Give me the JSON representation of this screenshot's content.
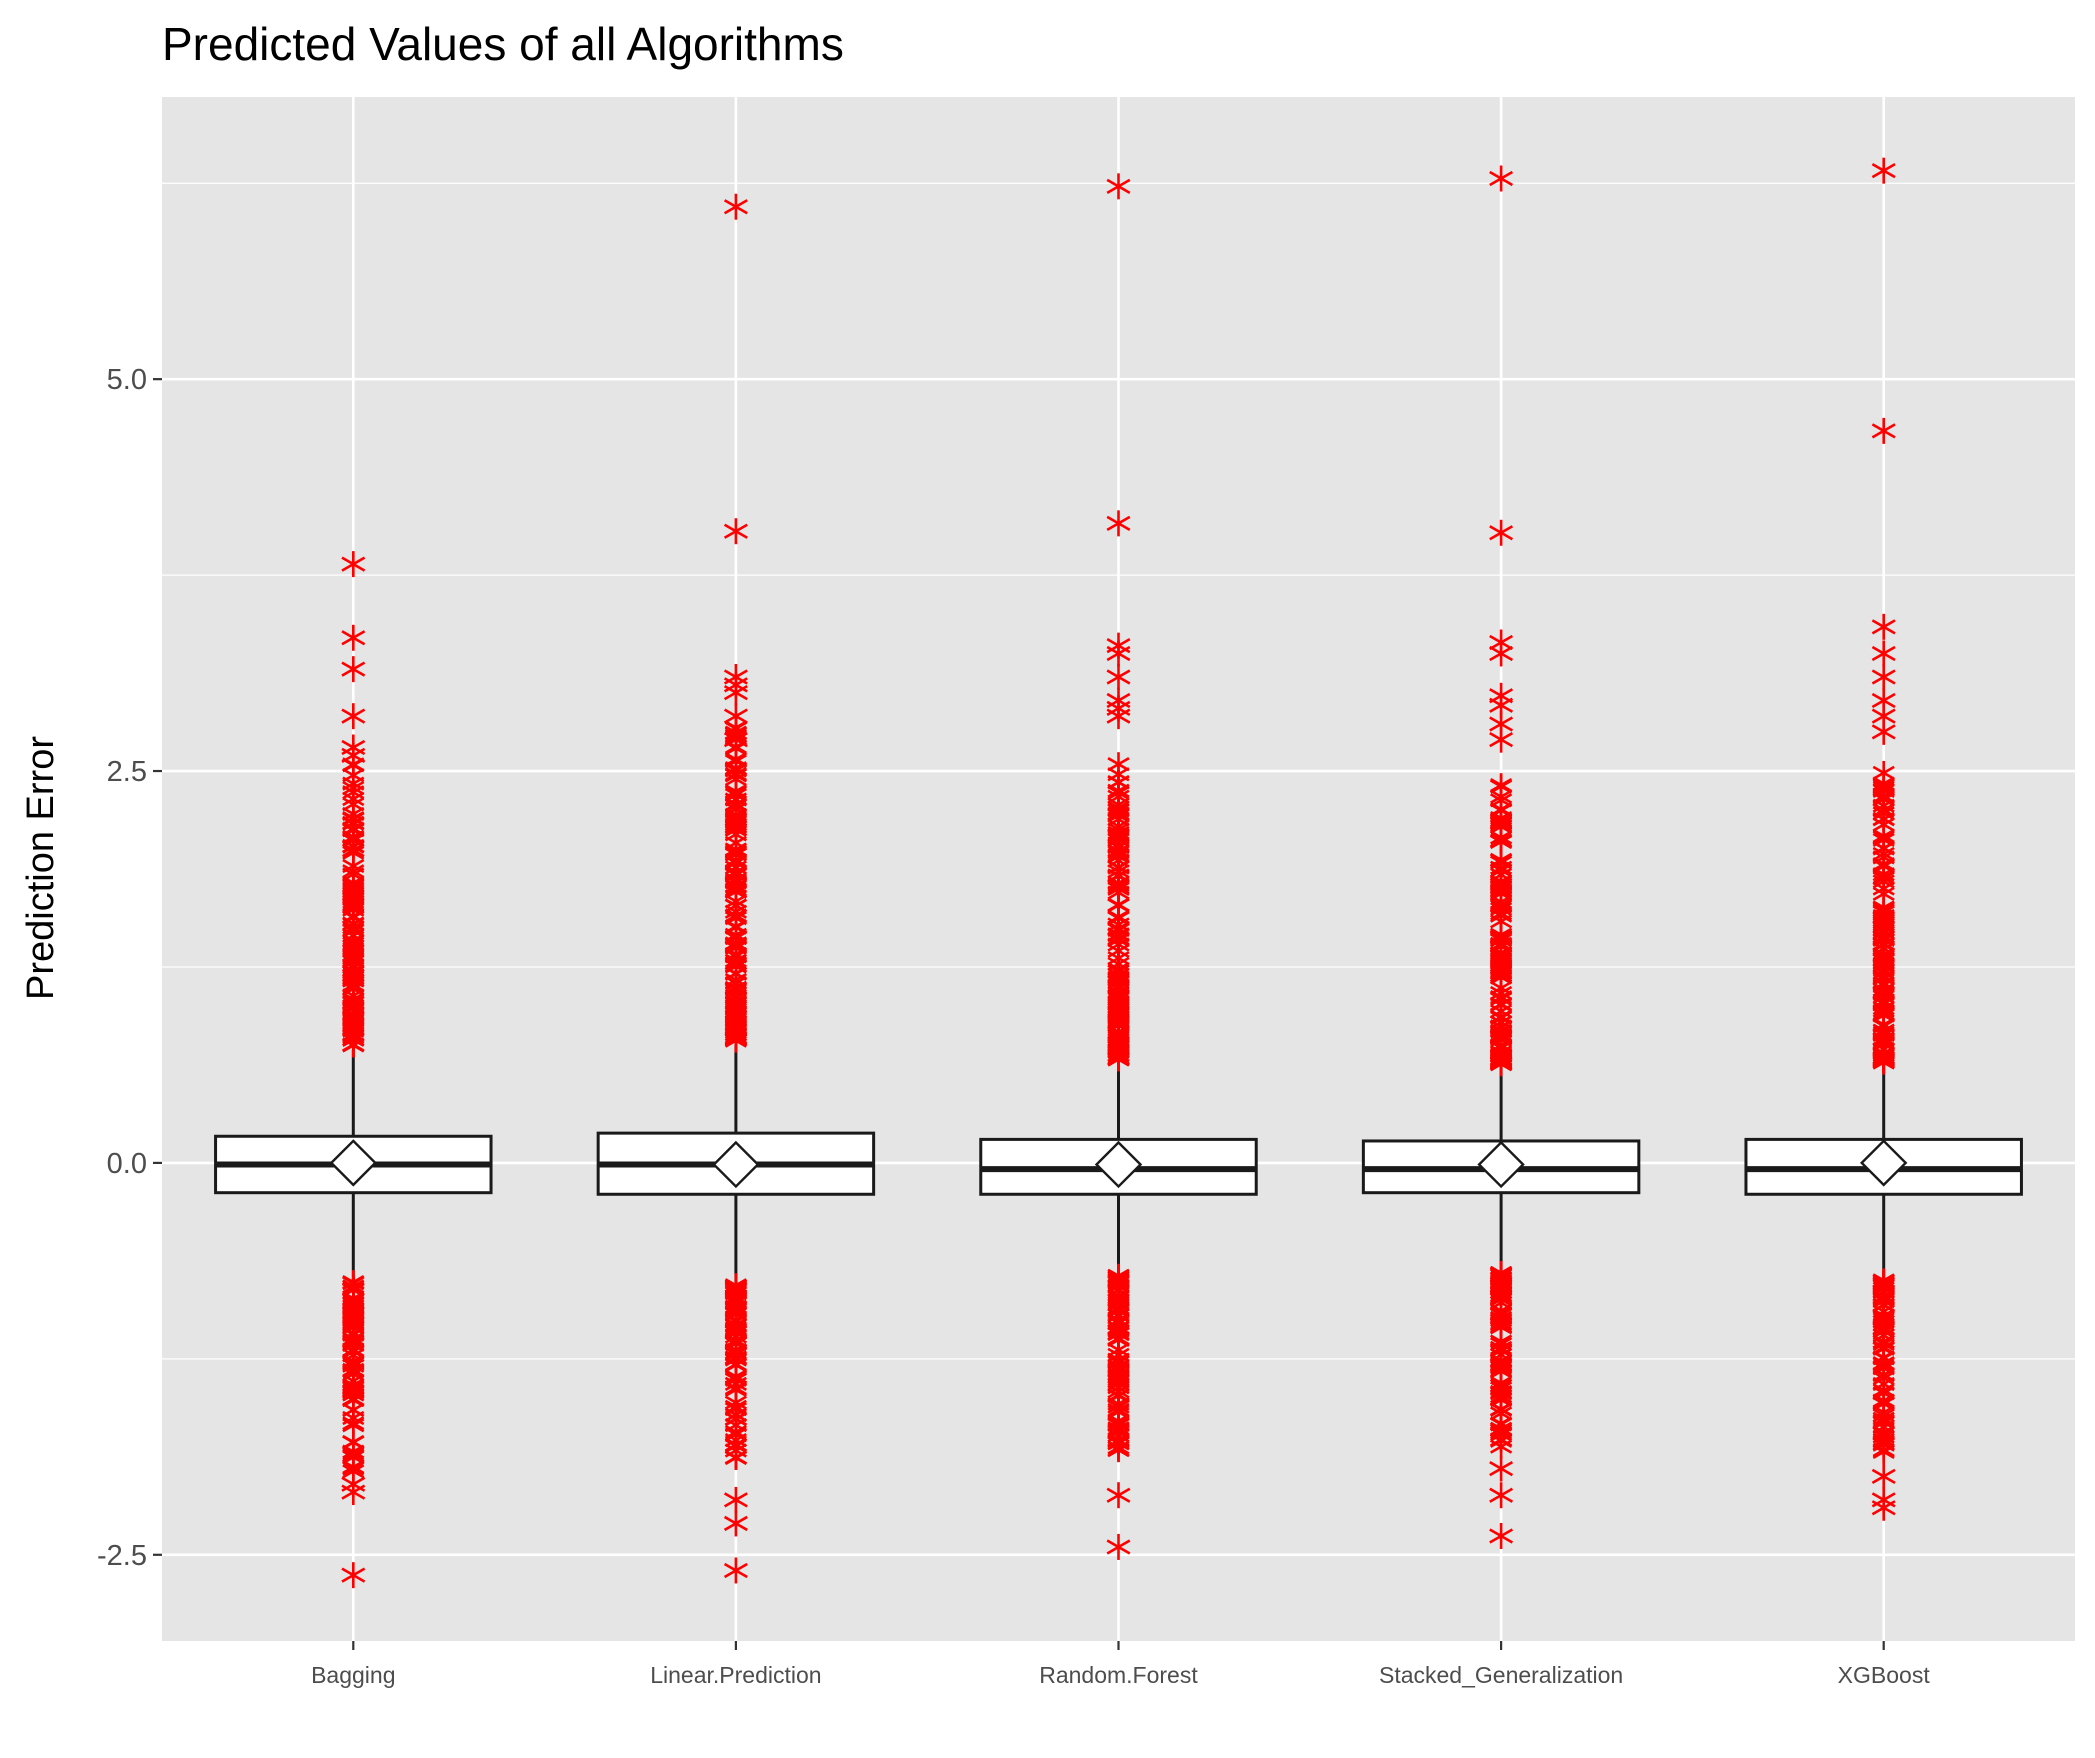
{
  "chart_data": {
    "type": "box",
    "title": "Predicted Values of all Algorithms",
    "xlabel": "",
    "ylabel": "Prediction Error",
    "ylim": [
      -3.05,
      6.8
    ],
    "yticks": [
      -2.5,
      0.0,
      2.5,
      5.0
    ],
    "ytick_labels": [
      "-2.5",
      "0.0",
      "2.5",
      "5.0"
    ],
    "grid": true,
    "legend": "none",
    "colors": {
      "panel": "#e5e5e5",
      "grid": "#ffffff",
      "box_fill": "#ffffff",
      "box_line": "#1a1a1a",
      "outlier": "#ff0000",
      "tick_text": "#4d4d4d"
    },
    "categories": [
      "Bagging",
      "Linear.Prediction",
      "Random.Forest",
      "Stacked_Generalization",
      "XGBoost"
    ],
    "series": [
      {
        "category": "Bagging",
        "q1": -0.19,
        "median": -0.01,
        "q3": 0.17,
        "whisker_low": -0.75,
        "whisker_high": 0.72,
        "mean": 0.0,
        "outlier_high_band": [
          0.75,
          2.55
        ],
        "outlier_low_band": [
          -2.0,
          -0.76
        ],
        "outliers": [
          3.82,
          3.35,
          3.15,
          2.85,
          2.65,
          2.6,
          -2.05,
          -2.1,
          -2.63
        ]
      },
      {
        "category": "Linear.Prediction",
        "q1": -0.2,
        "median": -0.01,
        "q3": 0.19,
        "whisker_low": -0.78,
        "whisker_high": 0.75,
        "mean": -0.01,
        "outlier_high_band": [
          0.78,
          2.8
        ],
        "outlier_low_band": [
          -1.95,
          -0.78
        ],
        "outliers": [
          6.1,
          4.03,
          3.1,
          3.05,
          3.0,
          2.85,
          2.7,
          -2.15,
          -2.3,
          -2.6
        ]
      },
      {
        "category": "Random.Forest",
        "q1": -0.2,
        "median": -0.04,
        "q3": 0.15,
        "whisker_low": -0.72,
        "whisker_high": 0.66,
        "mean": -0.01,
        "outlier_high_band": [
          0.66,
          2.55
        ],
        "outlier_low_band": [
          -1.85,
          -0.72
        ],
        "outliers": [
          6.23,
          4.08,
          3.3,
          3.25,
          3.1,
          2.95,
          2.9,
          2.85,
          -2.12,
          -2.45
        ]
      },
      {
        "category": "Stacked_Generalization",
        "q1": -0.19,
        "median": -0.04,
        "q3": 0.14,
        "whisker_low": -0.7,
        "whisker_high": 0.63,
        "mean": -0.01,
        "outlier_high_band": [
          0.63,
          2.5
        ],
        "outlier_low_band": [
          -1.85,
          -0.7
        ],
        "outliers": [
          6.28,
          4.02,
          3.32,
          3.25,
          2.98,
          2.92,
          2.8,
          2.7,
          -1.95,
          -2.12,
          -2.38
        ]
      },
      {
        "category": "XGBoost",
        "q1": -0.2,
        "median": -0.04,
        "q3": 0.15,
        "whisker_low": -0.75,
        "whisker_high": 0.64,
        "mean": 0.0,
        "outlier_high_band": [
          0.64,
          2.5
        ],
        "outlier_low_band": [
          -1.9,
          -0.75
        ],
        "outliers": [
          6.33,
          4.67,
          3.42,
          3.25,
          3.1,
          2.95,
          2.85,
          2.75,
          -2.0,
          -2.15,
          -2.2
        ]
      }
    ]
  }
}
